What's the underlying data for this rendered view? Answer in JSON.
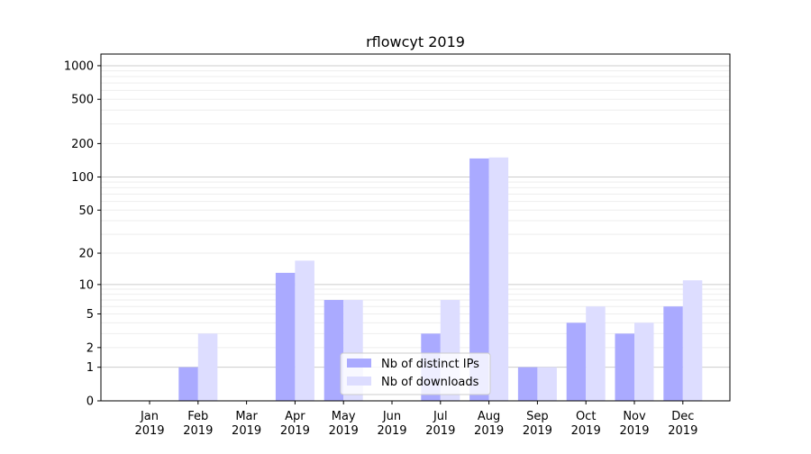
{
  "chart_data": {
    "type": "bar",
    "title": "rflowcyt 2019",
    "xlabel": "",
    "ylabel": "",
    "yscale": "log(1+y)",
    "ylim": [
      0,
      1250
    ],
    "yticks": [
      0,
      1,
      2,
      5,
      10,
      20,
      50,
      100,
      200,
      500,
      1000
    ],
    "categories": [
      "Jan\n2019",
      "Feb\n2019",
      "Mar\n2019",
      "Apr\n2019",
      "May\n2019",
      "Jun\n2019",
      "Jul\n2019",
      "Aug\n2019",
      "Sep\n2019",
      "Oct\n2019",
      "Nov\n2019",
      "Dec\n2019"
    ],
    "series": [
      {
        "name": "Nb of distinct IPs",
        "color": "#aaaaff",
        "values": [
          0,
          1,
          0,
          13,
          7,
          0,
          3,
          147,
          1,
          4,
          3,
          6
        ]
      },
      {
        "name": "Nb of downloads",
        "color": "#ddddff",
        "values": [
          0,
          3,
          0,
          17,
          7,
          0,
          7,
          150,
          1,
          6,
          4,
          11
        ]
      }
    ],
    "grid": true,
    "legend_position": "lower-center"
  }
}
